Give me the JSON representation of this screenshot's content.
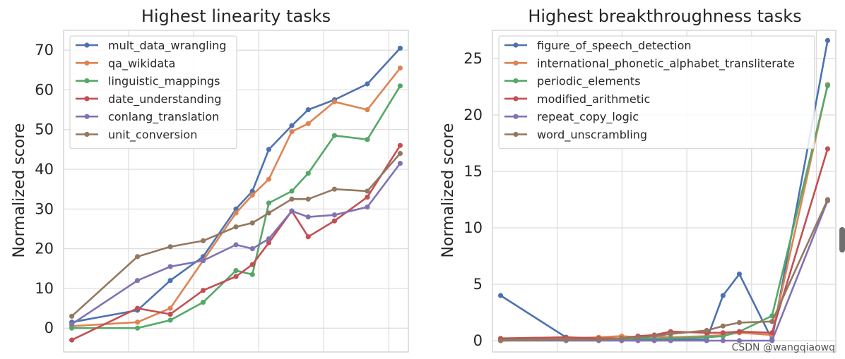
{
  "watermark": "CSDN @wangqiaowq",
  "chart_data": [
    {
      "type": "line",
      "title": "Highest linearity tasks",
      "ylabel": "Normalized score",
      "xlabel": "",
      "ylim": [
        -6,
        75
      ],
      "xlim": [
        -0.25,
        10.25
      ],
      "yticks": [
        0,
        10,
        20,
        30,
        40,
        50,
        60,
        70
      ],
      "grid": true,
      "legend": "top-left",
      "series": [
        {
          "name": "mult_data_wrangling",
          "color": "#4c72b0",
          "points": [
            [
              0,
              1.5
            ],
            [
              2,
              4.5
            ],
            [
              3,
              12
            ],
            [
              4,
              18
            ],
            [
              5,
              30
            ],
            [
              5.5,
              34.5
            ],
            [
              6,
              45
            ],
            [
              6.7,
              51
            ],
            [
              7.2,
              55
            ],
            [
              8,
              57.5
            ],
            [
              9,
              61.5
            ],
            [
              10,
              70.5
            ]
          ]
        },
        {
          "name": "qa_wikidata",
          "color": "#dd8452",
          "points": [
            [
              0,
              0.5
            ],
            [
              2,
              1.5
            ],
            [
              3,
              5
            ],
            [
              4,
              17
            ],
            [
              5,
              29
            ],
            [
              5.5,
              33.5
            ],
            [
              6,
              37.5
            ],
            [
              6.7,
              49.5
            ],
            [
              7.2,
              51.5
            ],
            [
              8,
              57
            ],
            [
              9,
              55
            ],
            [
              10,
              65.5
            ]
          ]
        },
        {
          "name": "linguistic_mappings",
          "color": "#55a868",
          "points": [
            [
              0,
              0
            ],
            [
              2,
              0
            ],
            [
              3,
              2
            ],
            [
              4,
              6.5
            ],
            [
              5,
              14.5
            ],
            [
              5.5,
              13.5
            ],
            [
              6,
              31.5
            ],
            [
              6.7,
              34.5
            ],
            [
              7.2,
              39
            ],
            [
              8,
              48.5
            ],
            [
              9,
              47.5
            ],
            [
              10,
              61
            ]
          ]
        },
        {
          "name": "date_understanding",
          "color": "#c44e52",
          "points": [
            [
              0,
              -3
            ],
            [
              2,
              5
            ],
            [
              3,
              3.5
            ],
            [
              4,
              9.5
            ],
            [
              5,
              13
            ],
            [
              5.5,
              16
            ],
            [
              6,
              21.5
            ],
            [
              6.7,
              29.5
            ],
            [
              7.2,
              23
            ],
            [
              8,
              27
            ],
            [
              9,
              33
            ],
            [
              10,
              46
            ]
          ]
        },
        {
          "name": "conlang_translation",
          "color": "#8172b3",
          "points": [
            [
              0,
              1
            ],
            [
              2,
              12
            ],
            [
              3,
              15.5
            ],
            [
              4,
              17
            ],
            [
              5,
              21
            ],
            [
              5.5,
              20
            ],
            [
              6,
              22.5
            ],
            [
              6.7,
              29.5
            ],
            [
              7.2,
              28
            ],
            [
              8,
              28.5
            ],
            [
              9,
              30.5
            ],
            [
              10,
              41.5
            ]
          ]
        },
        {
          "name": "unit_conversion",
          "color": "#937860",
          "points": [
            [
              0,
              3
            ],
            [
              2,
              18
            ],
            [
              3,
              20.5
            ],
            [
              4,
              22
            ],
            [
              5,
              25.5
            ],
            [
              5.5,
              26.5
            ],
            [
              6,
              29
            ],
            [
              6.7,
              32.5
            ],
            [
              7.2,
              32.5
            ],
            [
              8,
              35
            ],
            [
              9,
              34.5
            ],
            [
              10,
              44
            ]
          ]
        }
      ]
    },
    {
      "type": "line",
      "title": "Highest breakthroughness tasks",
      "ylabel": "Normalized score",
      "xlabel": "",
      "ylim": [
        -1,
        27.5
      ],
      "xlim": [
        -0.25,
        10.25
      ],
      "yticks": [
        0,
        5,
        10,
        15,
        20,
        25
      ],
      "grid": true,
      "legend": "top-left",
      "series": [
        {
          "name": "figure_of_speech_detection",
          "color": "#4c72b0",
          "points": [
            [
              0,
              4
            ],
            [
              2,
              0.3
            ],
            [
              3,
              0.1
            ],
            [
              3.7,
              0.1
            ],
            [
              4.2,
              0.1
            ],
            [
              4.7,
              0.1
            ],
            [
              5.2,
              0.1
            ],
            [
              6.3,
              0.1
            ],
            [
              6.8,
              4
            ],
            [
              7.3,
              5.9
            ],
            [
              8.3,
              0.1
            ],
            [
              10,
              26.6
            ]
          ]
        },
        {
          "name": "international_phonetic_alphabet_transliterate",
          "color": "#dd8452",
          "points": [
            [
              0,
              0.1
            ],
            [
              2,
              0.2
            ],
            [
              3,
              0.3
            ],
            [
              3.7,
              0.4
            ],
            [
              4.2,
              0.3
            ],
            [
              4.7,
              0.4
            ],
            [
              5.2,
              0.3
            ],
            [
              6.3,
              0.4
            ],
            [
              6.8,
              0.5
            ],
            [
              7.3,
              0.7
            ],
            [
              8.3,
              0.5
            ],
            [
              10,
              22.7
            ]
          ]
        },
        {
          "name": "periodic_elements",
          "color": "#55a868",
          "points": [
            [
              0,
              0.1
            ],
            [
              2,
              0.1
            ],
            [
              3,
              0.1
            ],
            [
              3.7,
              0.1
            ],
            [
              4.2,
              0.2
            ],
            [
              4.7,
              0.2
            ],
            [
              5.2,
              0.2
            ],
            [
              6.3,
              0.3
            ],
            [
              6.8,
              0.4
            ],
            [
              7.3,
              0.8
            ],
            [
              8.3,
              2.2
            ],
            [
              10,
              22.6
            ]
          ]
        },
        {
          "name": "modified_arithmetic",
          "color": "#c44e52",
          "points": [
            [
              0,
              0.2
            ],
            [
              2,
              0.3
            ],
            [
              3,
              0.2
            ],
            [
              3.7,
              0.2
            ],
            [
              4.2,
              0.4
            ],
            [
              4.7,
              0.5
            ],
            [
              5.2,
              0.8
            ],
            [
              6.3,
              0.7
            ],
            [
              6.8,
              0.7
            ],
            [
              7.3,
              0.8
            ],
            [
              8.3,
              0.7
            ],
            [
              10,
              17
            ]
          ]
        },
        {
          "name": "repeat_copy_logic",
          "color": "#8172b3",
          "points": [
            [
              0,
              0
            ],
            [
              2,
              0
            ],
            [
              3,
              0
            ],
            [
              3.7,
              0
            ],
            [
              4.2,
              0
            ],
            [
              4.7,
              0
            ],
            [
              5.2,
              0
            ],
            [
              6.3,
              0
            ],
            [
              6.8,
              0
            ],
            [
              7.3,
              0
            ],
            [
              8.3,
              0
            ],
            [
              10,
              12.4
            ]
          ]
        },
        {
          "name": "word_unscrambling",
          "color": "#937860",
          "points": [
            [
              0,
              0
            ],
            [
              2,
              0.1
            ],
            [
              3,
              0.1
            ],
            [
              3.7,
              0.2
            ],
            [
              4.2,
              0.3
            ],
            [
              4.7,
              0.4
            ],
            [
              5.2,
              0.6
            ],
            [
              6.3,
              0.9
            ],
            [
              6.8,
              1.3
            ],
            [
              7.3,
              1.6
            ],
            [
              8.3,
              1.7
            ],
            [
              10,
              12.5
            ]
          ]
        }
      ]
    }
  ]
}
